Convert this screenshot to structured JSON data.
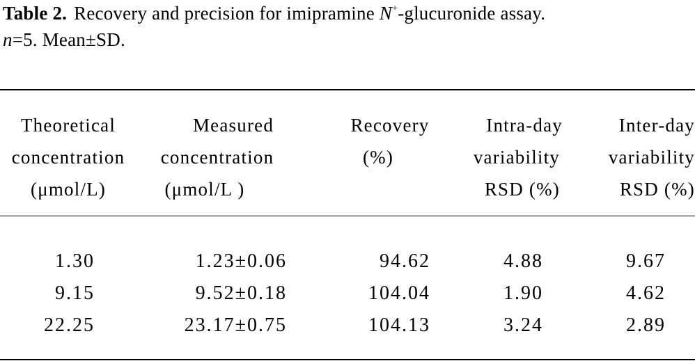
{
  "caption": {
    "label": "Table 2.",
    "text_before_sup": "Recovery and precision for imipramine ",
    "n_symbol": "N",
    "superscript": "+",
    "text_after_sup": "-glucuronide assay.",
    "line2_var": "n",
    "line2_text": "=5.   Mean±SD."
  },
  "table": {
    "headers": [
      [
        "Theoretical",
        "concentration",
        "(μmol/L)"
      ],
      [
        "Measured",
        "concentration",
        "(μmol/L )"
      ],
      [
        "Recovery",
        "(%)",
        ""
      ],
      [
        "Intra-day",
        "variability",
        "RSD (%)"
      ],
      [
        "Inter-day",
        "variability",
        "RSD (%)"
      ]
    ],
    "rows": [
      [
        "1.30",
        "1.23±0.06",
        "94.62",
        "4.88",
        "9.67"
      ],
      [
        "9.15",
        "9.52±0.18",
        "104.04",
        "1.90",
        "4.62"
      ],
      [
        "22.25",
        "23.17±0.75",
        "104.13",
        "3.24",
        "2.89"
      ]
    ]
  }
}
